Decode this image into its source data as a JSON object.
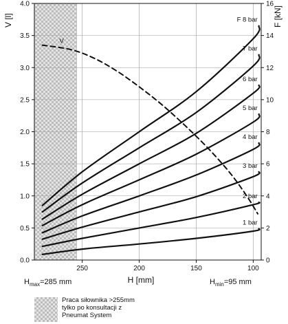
{
  "chart_data": {
    "type": "line",
    "xlabel": "H [mm]",
    "ylabel_left": "V [l]",
    "ylabel_right": "F [kN]",
    "x_ticks": [
      "250",
      "200",
      "150",
      "100"
    ],
    "xlim": [
      292,
      93
    ],
    "x_reversed": true,
    "ylim_left": [
      0,
      4.0
    ],
    "ylim_right": [
      0,
      16
    ],
    "y_left_ticks": [
      "0.0",
      "0.5",
      "1.0",
      "1.5",
      "2.0",
      "2.5",
      "3.0",
      "3.5",
      "4.0"
    ],
    "y_right_ticks": [
      "0",
      "2",
      "4",
      "6",
      "8",
      "10",
      "12",
      "14",
      "16"
    ],
    "grid": true,
    "hatched_region": [
      292,
      255
    ],
    "series": [
      {
        "name": "F 8 bar",
        "axis": "right",
        "x": [
          285,
          250,
          200,
          150,
          100,
          95
        ],
        "y": [
          3.4,
          5.5,
          8.0,
          10.5,
          13.8,
          14.6
        ]
      },
      {
        "name": "7 bar",
        "axis": "right",
        "x": [
          285,
          250,
          200,
          150,
          100,
          95
        ],
        "y": [
          3.0,
          4.8,
          7.0,
          9.2,
          12.1,
          12.8
        ]
      },
      {
        "name": "6 bar",
        "axis": "right",
        "x": [
          285,
          250,
          200,
          150,
          100,
          95
        ],
        "y": [
          2.55,
          4.1,
          6.0,
          7.9,
          10.4,
          10.9
        ]
      },
      {
        "name": "5 bar",
        "axis": "right",
        "x": [
          285,
          250,
          200,
          150,
          100,
          95
        ],
        "y": [
          2.15,
          3.45,
          5.0,
          6.6,
          8.6,
          9.1
        ]
      },
      {
        "name": "4 bar",
        "axis": "right",
        "x": [
          285,
          250,
          200,
          150,
          100,
          95
        ],
        "y": [
          1.7,
          2.75,
          4.0,
          5.3,
          6.9,
          7.3
        ]
      },
      {
        "name": "3 bar",
        "axis": "right",
        "x": [
          285,
          250,
          200,
          150,
          100,
          95
        ],
        "y": [
          1.3,
          2.05,
          3.0,
          3.95,
          5.2,
          5.5
        ]
      },
      {
        "name": "2 bar",
        "axis": "right",
        "x": [
          285,
          250,
          200,
          150,
          100,
          95
        ],
        "y": [
          0.85,
          1.35,
          2.0,
          2.65,
          3.45,
          3.6
        ]
      },
      {
        "name": "1 bar",
        "axis": "right",
        "x": [
          285,
          250,
          200,
          150,
          100,
          95
        ],
        "y": [
          0.35,
          0.68,
          1.0,
          1.35,
          1.8,
          1.95
        ]
      },
      {
        "name": "V",
        "axis": "left",
        "dashed": true,
        "x": [
          285,
          260,
          240,
          220,
          200,
          180,
          160,
          140,
          120,
          105,
          96
        ],
        "y": [
          3.35,
          3.28,
          3.15,
          2.95,
          2.7,
          2.42,
          2.1,
          1.75,
          1.35,
          0.98,
          0.72
        ]
      }
    ],
    "annotations": {
      "hmax_label": "H",
      "hmax_sub": "max",
      "hmax_value": "=285 mm",
      "hmin_label": "H",
      "hmin_sub": "min",
      "hmin_value": "=95 mm"
    }
  },
  "legend": {
    "line1": "Praca siłownika >255mm",
    "line2": "tylko po konsultacji z",
    "line3": "Pneumat System"
  }
}
